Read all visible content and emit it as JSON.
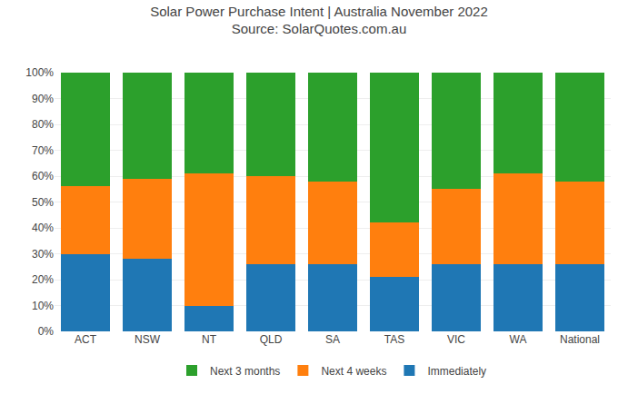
{
  "chart_data": {
    "type": "bar",
    "stacked": true,
    "title": "Solar Power Purchase Intent | Australia November 2022",
    "subtitle": "Source: SolarQuotes.com.au",
    "categories": [
      "ACT",
      "NSW",
      "NT",
      "QLD",
      "SA",
      "TAS",
      "VIC",
      "WA",
      "National"
    ],
    "series": [
      {
        "name": "Immediately",
        "values": [
          0.3,
          0.28,
          0.1,
          0.26,
          0.26,
          0.21,
          0.26,
          0.26,
          0.26
        ]
      },
      {
        "name": "Next 4 weeks",
        "values": [
          0.26,
          0.31,
          0.51,
          0.34,
          0.32,
          0.21,
          0.29,
          0.35,
          0.32
        ]
      },
      {
        "name": "Next 3 months",
        "values": [
          0.44,
          0.41,
          0.39,
          0.4,
          0.42,
          0.58,
          0.45,
          0.39,
          0.42
        ]
      }
    ],
    "ylim": [
      0,
      1.0
    ],
    "yticks": [
      {
        "value": 0,
        "label": "0%"
      },
      {
        "value": 0.1,
        "label": "10%"
      },
      {
        "value": 0.2,
        "label": "20%"
      },
      {
        "value": 0.3,
        "label": "30%"
      },
      {
        "value": 0.4,
        "label": "40%"
      },
      {
        "value": 0.5,
        "label": "50%"
      },
      {
        "value": 0.6,
        "label": "60%"
      },
      {
        "value": 0.7,
        "label": "70%"
      },
      {
        "value": 0.8,
        "label": "80%"
      },
      {
        "value": 0.9,
        "label": "90%"
      },
      {
        "value": 1.0,
        "label": "100%"
      }
    ],
    "grid": true,
    "legend": "bottom"
  }
}
